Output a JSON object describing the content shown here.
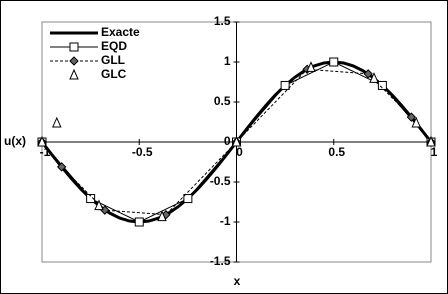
{
  "chart_data": {
    "type": "line",
    "x_label": "x",
    "y_label": "u(x)",
    "xlim": [
      -1,
      1
    ],
    "ylim": [
      -1.5,
      1.5
    ],
    "xticks": [
      -1,
      -0.5,
      0,
      0.5,
      1
    ],
    "yticks": [
      -1.5,
      -1,
      -0.5,
      0,
      0.5,
      1,
      1.5
    ],
    "legend": "top-left",
    "series": [
      {
        "name": "Exacte",
        "color": "#000000",
        "line_style": "thick",
        "marker": "none",
        "x": [
          -1,
          -0.95,
          -0.9,
          -0.85,
          -0.8,
          -0.75,
          -0.7,
          -0.65,
          -0.6,
          -0.55,
          -0.5,
          -0.45,
          -0.4,
          -0.35,
          -0.3,
          -0.25,
          -0.2,
          -0.15,
          -0.1,
          -0.05,
          0,
          0.05,
          0.1,
          0.15,
          0.2,
          0.25,
          0.3,
          0.35,
          0.4,
          0.45,
          0.5,
          0.55,
          0.6,
          0.65,
          0.7,
          0.75,
          0.8,
          0.85,
          0.9,
          0.95,
          1
        ],
        "values": [
          0,
          -0.156,
          -0.309,
          -0.454,
          -0.588,
          -0.707,
          -0.809,
          -0.891,
          -0.951,
          -0.988,
          -1,
          -0.988,
          -0.951,
          -0.891,
          -0.809,
          -0.707,
          -0.588,
          -0.454,
          -0.309,
          -0.156,
          0,
          0.156,
          0.309,
          0.454,
          0.588,
          0.707,
          0.809,
          0.891,
          0.951,
          0.988,
          1,
          0.988,
          0.951,
          0.891,
          0.809,
          0.707,
          0.588,
          0.454,
          0.309,
          0.156,
          0
        ]
      },
      {
        "name": "EQD",
        "color": "#000000",
        "line_style": "solid",
        "marker": "square",
        "x": [
          -1,
          -0.75,
          -0.5,
          -0.25,
          0,
          0.25,
          0.5,
          0.75,
          1
        ],
        "values": [
          0,
          -0.707,
          -1,
          -0.707,
          0,
          0.707,
          1,
          0.707,
          0
        ]
      },
      {
        "name": "GLL",
        "color": "#000000",
        "line_style": "dashed",
        "marker": "diamond",
        "x": [
          -1,
          -0.899,
          -0.677,
          -0.363,
          0,
          0.363,
          0.677,
          0.899,
          1
        ],
        "values": [
          0,
          -0.311,
          -0.852,
          -0.909,
          0,
          0.909,
          0.852,
          0.311,
          0
        ]
      },
      {
        "name": "GLC",
        "color": "#000000",
        "line_style": "none",
        "marker": "triangle",
        "x": [
          -1,
          -0.924,
          -0.707,
          -0.383,
          0,
          0.383,
          0.707,
          0.924,
          1
        ],
        "values": [
          0,
          0.238,
          -0.796,
          -0.933,
          0,
          0.933,
          0.796,
          0.238,
          0
        ]
      }
    ]
  }
}
